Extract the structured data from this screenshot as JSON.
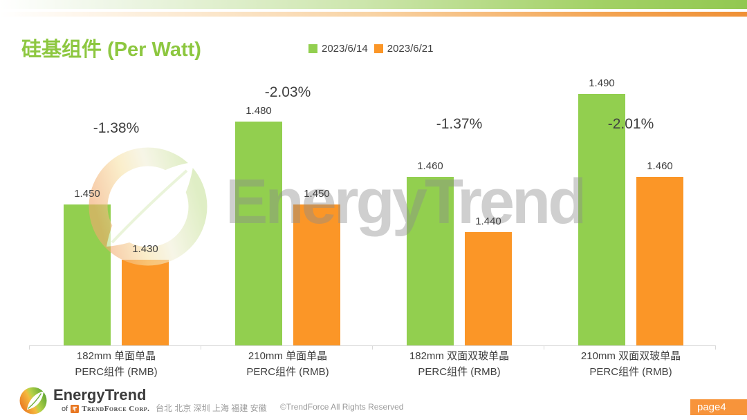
{
  "slide": {
    "title": "硅基组件 (Per Watt)",
    "title_color": "#8DC740"
  },
  "legend": {
    "items": [
      {
        "label": "2023/6/14",
        "color": "#92CF4F"
      },
      {
        "label": "2023/6/21",
        "color": "#FB9627"
      }
    ]
  },
  "chart_data": {
    "type": "bar",
    "title": "硅基组件 (Per Watt)",
    "categories": [
      "182mm 单面单晶\nPERC组件 (RMB)",
      "210mm 单面单晶\nPERC组件 (RMB)",
      "182mm 双面双玻单晶\nPERC组件 (RMB)",
      "210mm 双面双玻单晶\nPERC组件 (RMB)"
    ],
    "series": [
      {
        "name": "2023/6/14",
        "color": "#92CF4F",
        "values": [
          1.45,
          1.48,
          1.46,
          1.49
        ]
      },
      {
        "name": "2023/6/21",
        "color": "#FB9627",
        "values": [
          1.43,
          1.45,
          1.44,
          1.46
        ]
      }
    ],
    "change_labels": [
      "-1.38%",
      "-2.03%",
      "-1.37%",
      "-2.01%"
    ],
    "value_label_decimals": 3,
    "ylim": [
      1.4,
      1.5
    ],
    "legend_position": "top",
    "grid": false
  },
  "watermark": {
    "text": "EnergyTrend"
  },
  "footer": {
    "brand": "EnergyTrend",
    "brand_sub_prefix": "of",
    "brand_sub": "TrendForce Corp.",
    "cities": "台北 北京 深圳 上海 福建 安徽",
    "copyright": "©TrendForce All Rights Reserved",
    "page_badge": "page4",
    "page_badge_color": "#F7943B"
  }
}
